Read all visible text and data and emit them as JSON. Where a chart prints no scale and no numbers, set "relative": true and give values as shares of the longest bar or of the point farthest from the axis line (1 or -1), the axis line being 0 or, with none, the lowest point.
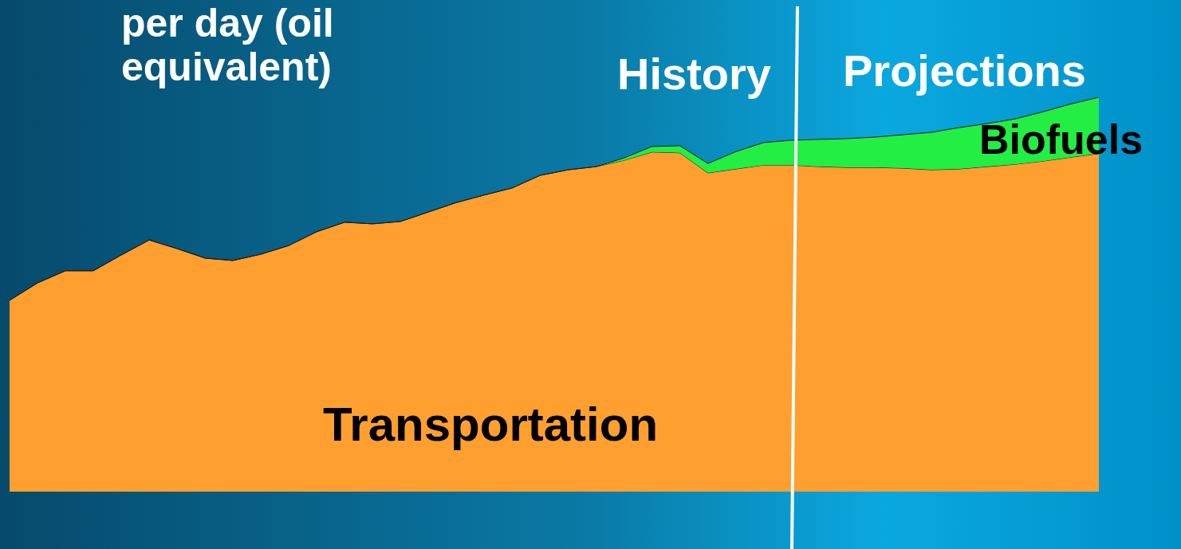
{
  "chart_data": {
    "type": "area",
    "stacked": true,
    "relative": true,
    "legend": false,
    "grid": false,
    "categories": [
      null,
      null,
      null,
      null,
      null,
      null,
      null,
      null,
      null,
      null,
      null,
      null,
      null,
      null,
      null,
      null,
      null,
      null,
      null,
      null,
      null,
      null,
      null,
      null,
      null,
      null,
      null,
      null,
      null,
      null,
      null,
      null,
      null,
      null,
      null,
      null,
      null,
      null,
      null,
      null
    ],
    "series": [
      {
        "name": "Transportation",
        "color": "#ff9f30",
        "values": [
          0.485,
          0.529,
          0.56,
          0.56,
          0.6,
          0.638,
          0.616,
          0.592,
          0.586,
          0.602,
          0.624,
          0.659,
          0.683,
          0.679,
          0.685,
          0.709,
          0.733,
          0.752,
          0.77,
          0.802,
          0.816,
          0.824,
          0.84,
          0.861,
          0.859,
          0.808,
          0.818,
          0.828,
          0.828,
          0.824,
          0.822,
          0.822,
          0.82,
          0.816,
          0.818,
          0.824,
          0.83,
          0.838,
          0.848,
          0.857
        ]
      },
      {
        "name": "Biofuels",
        "color": "#22ee44",
        "values": [
          0,
          0,
          0,
          0,
          0,
          0,
          0,
          0,
          0,
          0,
          0,
          0,
          0,
          0,
          0,
          0,
          0,
          0,
          0,
          0,
          0,
          0,
          0.006,
          0.014,
          0.018,
          0.024,
          0.044,
          0.057,
          0.063,
          0.069,
          0.073,
          0.077,
          0.085,
          0.095,
          0.105,
          0.109,
          0.115,
          0.125,
          0.135,
          0.143
        ]
      }
    ],
    "annotations": [
      "per day (oil equivalent)",
      "History",
      "Projections"
    ]
  }
}
